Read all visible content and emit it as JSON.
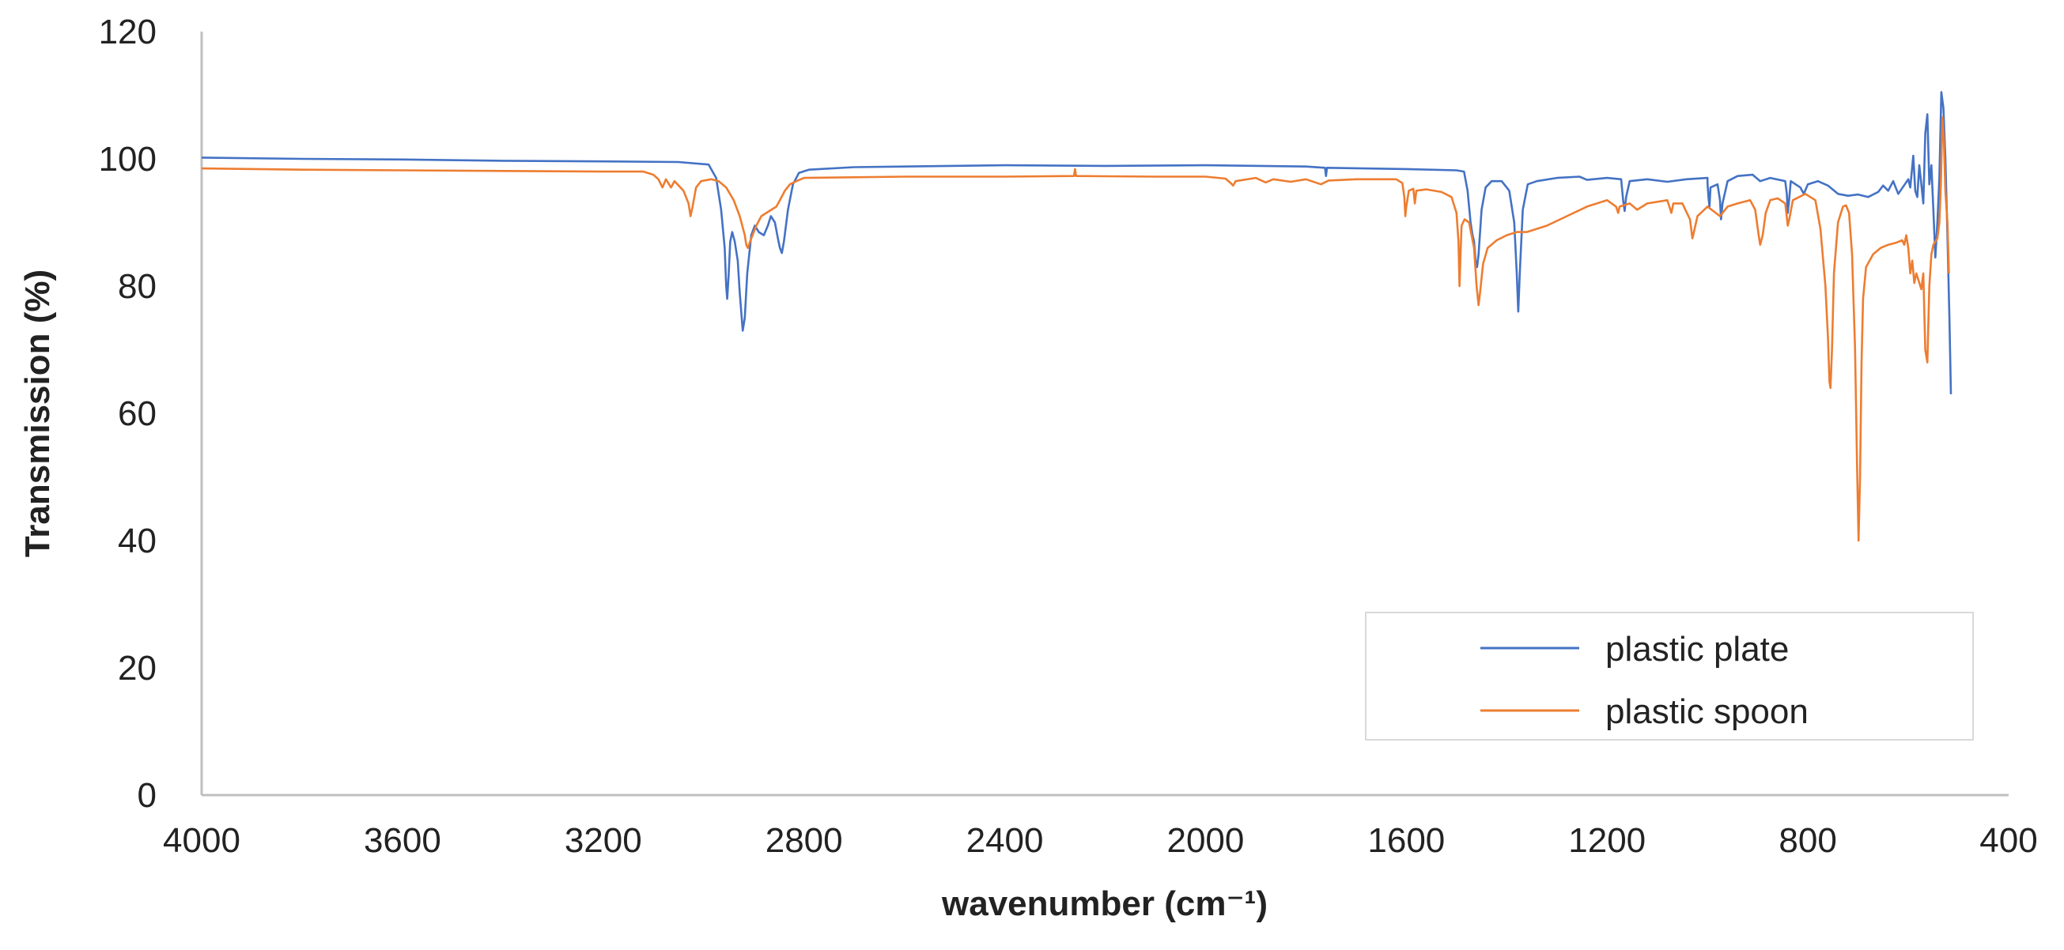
{
  "chart_data": {
    "type": "line",
    "title": "",
    "xlabel": "wavenumber (cm⁻¹)",
    "ylabel": "Transmission (%)",
    "xlim": [
      4000,
      400
    ],
    "ylim": [
      0,
      120
    ],
    "x_reversed": true,
    "x_ticks": [
      4000,
      3600,
      3200,
      2800,
      2400,
      2000,
      1600,
      1200,
      800,
      400
    ],
    "y_ticks": [
      0,
      20,
      40,
      60,
      80,
      100,
      120
    ],
    "grid": false,
    "legend": {
      "position": "bottom-right"
    },
    "series": [
      {
        "name": "plastic plate",
        "color": "#4472C4",
        "points": [
          [
            4000,
            100.2
          ],
          [
            3800,
            100.0
          ],
          [
            3600,
            99.9
          ],
          [
            3400,
            99.7
          ],
          [
            3200,
            99.6
          ],
          [
            3050,
            99.5
          ],
          [
            2990,
            99.1
          ],
          [
            2975,
            97.0
          ],
          [
            2965,
            92.0
          ],
          [
            2958,
            86.0
          ],
          [
            2955,
            80.0
          ],
          [
            2953,
            78.0
          ],
          [
            2950,
            82.0
          ],
          [
            2947,
            87.0
          ],
          [
            2943,
            88.5
          ],
          [
            2938,
            87.0
          ],
          [
            2932,
            84.0
          ],
          [
            2928,
            79.0
          ],
          [
            2925,
            76.0
          ],
          [
            2922,
            73.0
          ],
          [
            2918,
            75.0
          ],
          [
            2913,
            82.0
          ],
          [
            2905,
            88.0
          ],
          [
            2898,
            89.5
          ],
          [
            2890,
            88.5
          ],
          [
            2880,
            88.0
          ],
          [
            2872,
            89.5
          ],
          [
            2866,
            91.0
          ],
          [
            2858,
            90.0
          ],
          [
            2852,
            87.5
          ],
          [
            2848,
            86.0
          ],
          [
            2844,
            85.2
          ],
          [
            2840,
            87.0
          ],
          [
            2832,
            92.0
          ],
          [
            2822,
            96.0
          ],
          [
            2810,
            97.8
          ],
          [
            2790,
            98.3
          ],
          [
            2700,
            98.7
          ],
          [
            2400,
            99.0
          ],
          [
            2200,
            98.9
          ],
          [
            2000,
            99.0
          ],
          [
            1800,
            98.8
          ],
          [
            1762,
            98.6
          ],
          [
            1760,
            97.3
          ],
          [
            1758,
            98.6
          ],
          [
            1600,
            98.4
          ],
          [
            1500,
            98.2
          ],
          [
            1485,
            98.0
          ],
          [
            1478,
            95.0
          ],
          [
            1472,
            90.0
          ],
          [
            1468,
            88.0
          ],
          [
            1465,
            87.0
          ],
          [
            1462,
            84.0
          ],
          [
            1459,
            83.0
          ],
          [
            1456,
            85.0
          ],
          [
            1450,
            92.0
          ],
          [
            1442,
            95.5
          ],
          [
            1430,
            96.5
          ],
          [
            1410,
            96.5
          ],
          [
            1395,
            95.0
          ],
          [
            1385,
            90.0
          ],
          [
            1380,
            82.0
          ],
          [
            1377,
            76.0
          ],
          [
            1374,
            82.0
          ],
          [
            1368,
            92.0
          ],
          [
            1358,
            96.0
          ],
          [
            1340,
            96.5
          ],
          [
            1300,
            97.0
          ],
          [
            1255,
            97.2
          ],
          [
            1240,
            96.7
          ],
          [
            1200,
            97.0
          ],
          [
            1172,
            96.8
          ],
          [
            1168,
            93.5
          ],
          [
            1165,
            91.8
          ],
          [
            1162,
            94.0
          ],
          [
            1155,
            96.5
          ],
          [
            1120,
            96.8
          ],
          [
            1080,
            96.4
          ],
          [
            1042,
            96.8
          ],
          [
            1000,
            97.0
          ],
          [
            1000,
            96.2
          ],
          [
            998,
            94.0
          ],
          [
            996,
            92.5
          ],
          [
            994,
            95.5
          ],
          [
            980,
            96.0
          ],
          [
            975,
            93.5
          ],
          [
            973,
            90.5
          ],
          [
            970,
            93.0
          ],
          [
            960,
            96.5
          ],
          [
            940,
            97.3
          ],
          [
            910,
            97.5
          ],
          [
            895,
            96.5
          ],
          [
            875,
            97.0
          ],
          [
            845,
            96.5
          ],
          [
            842,
            94.5
          ],
          [
            840,
            91.5
          ],
          [
            838,
            93.0
          ],
          [
            834,
            96.5
          ],
          [
            815,
            95.5
          ],
          [
            808,
            94.5
          ],
          [
            800,
            96.0
          ],
          [
            780,
            96.5
          ],
          [
            760,
            95.8
          ],
          [
            740,
            94.5
          ],
          [
            720,
            94.2
          ],
          [
            700,
            94.4
          ],
          [
            680,
            94.0
          ],
          [
            660,
            94.8
          ],
          [
            650,
            95.8
          ],
          [
            640,
            95.0
          ],
          [
            630,
            96.5
          ],
          [
            620,
            94.5
          ],
          [
            600,
            96.8
          ],
          [
            596,
            95.5
          ],
          [
            590,
            100.5
          ],
          [
            586,
            95.0
          ],
          [
            582,
            94.0
          ],
          [
            578,
            99.0
          ],
          [
            574,
            96.0
          ],
          [
            570,
            93.0
          ],
          [
            566,
            104.0
          ],
          [
            562,
            107.0
          ],
          [
            558,
            96.0
          ],
          [
            554,
            99.0
          ],
          [
            550,
            92.0
          ],
          [
            546,
            84.5
          ],
          [
            542,
            90.0
          ],
          [
            538,
            97.0
          ],
          [
            534,
            110.5
          ],
          [
            530,
            108.0
          ],
          [
            526,
            100.0
          ],
          [
            522,
            88.0
          ],
          [
            518,
            75.0
          ],
          [
            515,
            63.0
          ]
        ]
      },
      {
        "name": "plastic spoon",
        "color": "#ED7D31",
        "points": [
          [
            4000,
            98.5
          ],
          [
            3800,
            98.3
          ],
          [
            3600,
            98.2
          ],
          [
            3400,
            98.1
          ],
          [
            3200,
            98.0
          ],
          [
            3120,
            98.0
          ],
          [
            3100,
            97.5
          ],
          [
            3090,
            96.8
          ],
          [
            3082,
            95.5
          ],
          [
            3075,
            96.8
          ],
          [
            3065,
            95.5
          ],
          [
            3058,
            96.5
          ],
          [
            3040,
            95.0
          ],
          [
            3030,
            93.0
          ],
          [
            3026,
            91.0
          ],
          [
            3022,
            92.5
          ],
          [
            3015,
            95.5
          ],
          [
            3005,
            96.5
          ],
          [
            2985,
            96.8
          ],
          [
            2970,
            96.5
          ],
          [
            2955,
            95.5
          ],
          [
            2940,
            93.5
          ],
          [
            2928,
            91.0
          ],
          [
            2918,
            88.0
          ],
          [
            2915,
            86.5
          ],
          [
            2912,
            86.0
          ],
          [
            2905,
            87.5
          ],
          [
            2895,
            89.5
          ],
          [
            2885,
            91.0
          ],
          [
            2875,
            91.5
          ],
          [
            2865,
            92.0
          ],
          [
            2855,
            92.5
          ],
          [
            2848,
            93.5
          ],
          [
            2838,
            95.0
          ],
          [
            2828,
            96.0
          ],
          [
            2815,
            96.5
          ],
          [
            2800,
            97.0
          ],
          [
            2600,
            97.2
          ],
          [
            2400,
            97.2
          ],
          [
            2262,
            97.3
          ],
          [
            2260,
            98.4
          ],
          [
            2258,
            97.3
          ],
          [
            2100,
            97.2
          ],
          [
            2000,
            97.2
          ],
          [
            1960,
            96.9
          ],
          [
            1950,
            96.2
          ],
          [
            1945,
            95.8
          ],
          [
            1940,
            96.5
          ],
          [
            1900,
            97.0
          ],
          [
            1880,
            96.3
          ],
          [
            1865,
            96.8
          ],
          [
            1830,
            96.4
          ],
          [
            1800,
            96.8
          ],
          [
            1770,
            96.0
          ],
          [
            1755,
            96.6
          ],
          [
            1700,
            96.8
          ],
          [
            1620,
            96.8
          ],
          [
            1608,
            96.2
          ],
          [
            1604,
            94.0
          ],
          [
            1602,
            91.0
          ],
          [
            1600,
            92.5
          ],
          [
            1595,
            95.0
          ],
          [
            1586,
            95.3
          ],
          [
            1583,
            93.0
          ],
          [
            1580,
            95.0
          ],
          [
            1560,
            95.2
          ],
          [
            1530,
            94.8
          ],
          [
            1510,
            94.0
          ],
          [
            1500,
            91.5
          ],
          [
            1496,
            87.0
          ],
          [
            1494,
            80.0
          ],
          [
            1492,
            85.0
          ],
          [
            1490,
            89.5
          ],
          [
            1484,
            90.5
          ],
          [
            1475,
            90.0
          ],
          [
            1465,
            86.0
          ],
          [
            1460,
            80.0
          ],
          [
            1456,
            77.0
          ],
          [
            1453,
            79.0
          ],
          [
            1447,
            83.5
          ],
          [
            1438,
            86.0
          ],
          [
            1420,
            87.2
          ],
          [
            1400,
            88.0
          ],
          [
            1380,
            88.5
          ],
          [
            1360,
            88.5
          ],
          [
            1320,
            89.5
          ],
          [
            1280,
            91.0
          ],
          [
            1240,
            92.5
          ],
          [
            1200,
            93.5
          ],
          [
            1182,
            92.5
          ],
          [
            1178,
            91.5
          ],
          [
            1175,
            92.5
          ],
          [
            1155,
            93.0
          ],
          [
            1140,
            92.0
          ],
          [
            1120,
            93.0
          ],
          [
            1080,
            93.5
          ],
          [
            1072,
            91.5
          ],
          [
            1068,
            93.0
          ],
          [
            1050,
            93.0
          ],
          [
            1035,
            90.5
          ],
          [
            1030,
            87.5
          ],
          [
            1027,
            88.5
          ],
          [
            1020,
            91.0
          ],
          [
            1000,
            92.5
          ],
          [
            975,
            91.0
          ],
          [
            960,
            92.5
          ],
          [
            940,
            93.0
          ],
          [
            915,
            93.5
          ],
          [
            905,
            92.0
          ],
          [
            898,
            88.0
          ],
          [
            895,
            86.5
          ],
          [
            890,
            88.0
          ],
          [
            884,
            91.5
          ],
          [
            875,
            93.5
          ],
          [
            860,
            93.8
          ],
          [
            845,
            93.0
          ],
          [
            840,
            89.5
          ],
          [
            837,
            90.5
          ],
          [
            830,
            93.5
          ],
          [
            805,
            94.5
          ],
          [
            785,
            93.5
          ],
          [
            775,
            89.0
          ],
          [
            765,
            80.0
          ],
          [
            760,
            72.0
          ],
          [
            757,
            65.0
          ],
          [
            755,
            64.0
          ],
          [
            752,
            70.0
          ],
          [
            748,
            82.0
          ],
          [
            740,
            90.0
          ],
          [
            730,
            92.5
          ],
          [
            724,
            92.7
          ],
          [
            718,
            91.5
          ],
          [
            712,
            85.0
          ],
          [
            706,
            70.0
          ],
          [
            702,
            52.0
          ],
          [
            699,
            40.0
          ],
          [
            696,
            50.0
          ],
          [
            693,
            68.0
          ],
          [
            690,
            78.0
          ],
          [
            684,
            83.0
          ],
          [
            670,
            85.0
          ],
          [
            655,
            86.0
          ],
          [
            640,
            86.5
          ],
          [
            625,
            86.8
          ],
          [
            612,
            87.2
          ],
          [
            608,
            86.5
          ],
          [
            604,
            88.0
          ],
          [
            600,
            86.0
          ],
          [
            596,
            82.0
          ],
          [
            592,
            84.0
          ],
          [
            588,
            80.5
          ],
          [
            584,
            82.0
          ],
          [
            580,
            81.0
          ],
          [
            574,
            79.5
          ],
          [
            570,
            82.0
          ],
          [
            566,
            70.0
          ],
          [
            562,
            68.0
          ],
          [
            558,
            80.0
          ],
          [
            554,
            85.0
          ],
          [
            550,
            86.5
          ],
          [
            546,
            87.0
          ],
          [
            542,
            87.5
          ],
          [
            538,
            90.0
          ],
          [
            535,
            96.0
          ],
          [
            532,
            106.5
          ],
          [
            529,
            103.0
          ],
          [
            526,
            95.0
          ],
          [
            522,
            90.0
          ],
          [
            519,
            82.0
          ]
        ]
      }
    ]
  }
}
